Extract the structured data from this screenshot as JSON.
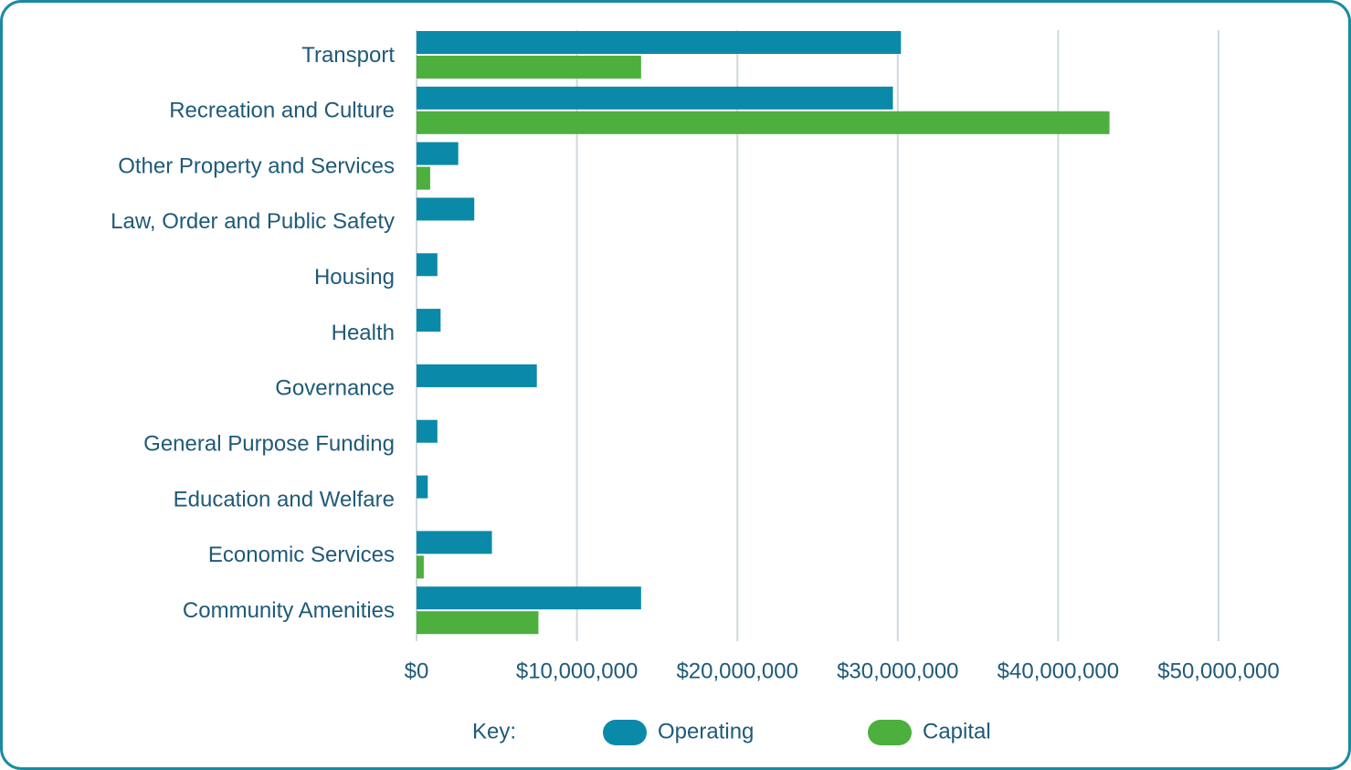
{
  "chart_data": {
    "type": "hbar",
    "categories": [
      "Transport",
      "Recreation and Culture",
      "Other Property and Services",
      "Law, Order and Public Safety",
      "Housing",
      "Health",
      "Governance",
      "General Purpose Funding",
      "Education and Welfare",
      "Economic Services",
      "Community Amenities"
    ],
    "series": [
      {
        "name": "Operating",
        "color": "#0a8aa8",
        "values": [
          30200000,
          29700000,
          2600000,
          3600000,
          1300000,
          1500000,
          7500000,
          1300000,
          700000,
          4700000,
          14000000
        ]
      },
      {
        "name": "Capital",
        "color": "#4caf3e",
        "values": [
          14000000,
          43200000,
          850000,
          0,
          0,
          0,
          0,
          0,
          0,
          450000,
          7600000
        ]
      }
    ],
    "xlim": [
      0,
      50000000
    ],
    "xticks": [
      {
        "value": 0,
        "label": "$0"
      },
      {
        "value": 10000000,
        "label": "$10,000,000"
      },
      {
        "value": 20000000,
        "label": "$20,000,000"
      },
      {
        "value": 30000000,
        "label": "$30,000,000"
      },
      {
        "value": 40000000,
        "label": "$40,000,000"
      },
      {
        "value": 50000000,
        "label": "$50,000,000"
      }
    ],
    "grid": true,
    "legend_title": "Key:"
  }
}
